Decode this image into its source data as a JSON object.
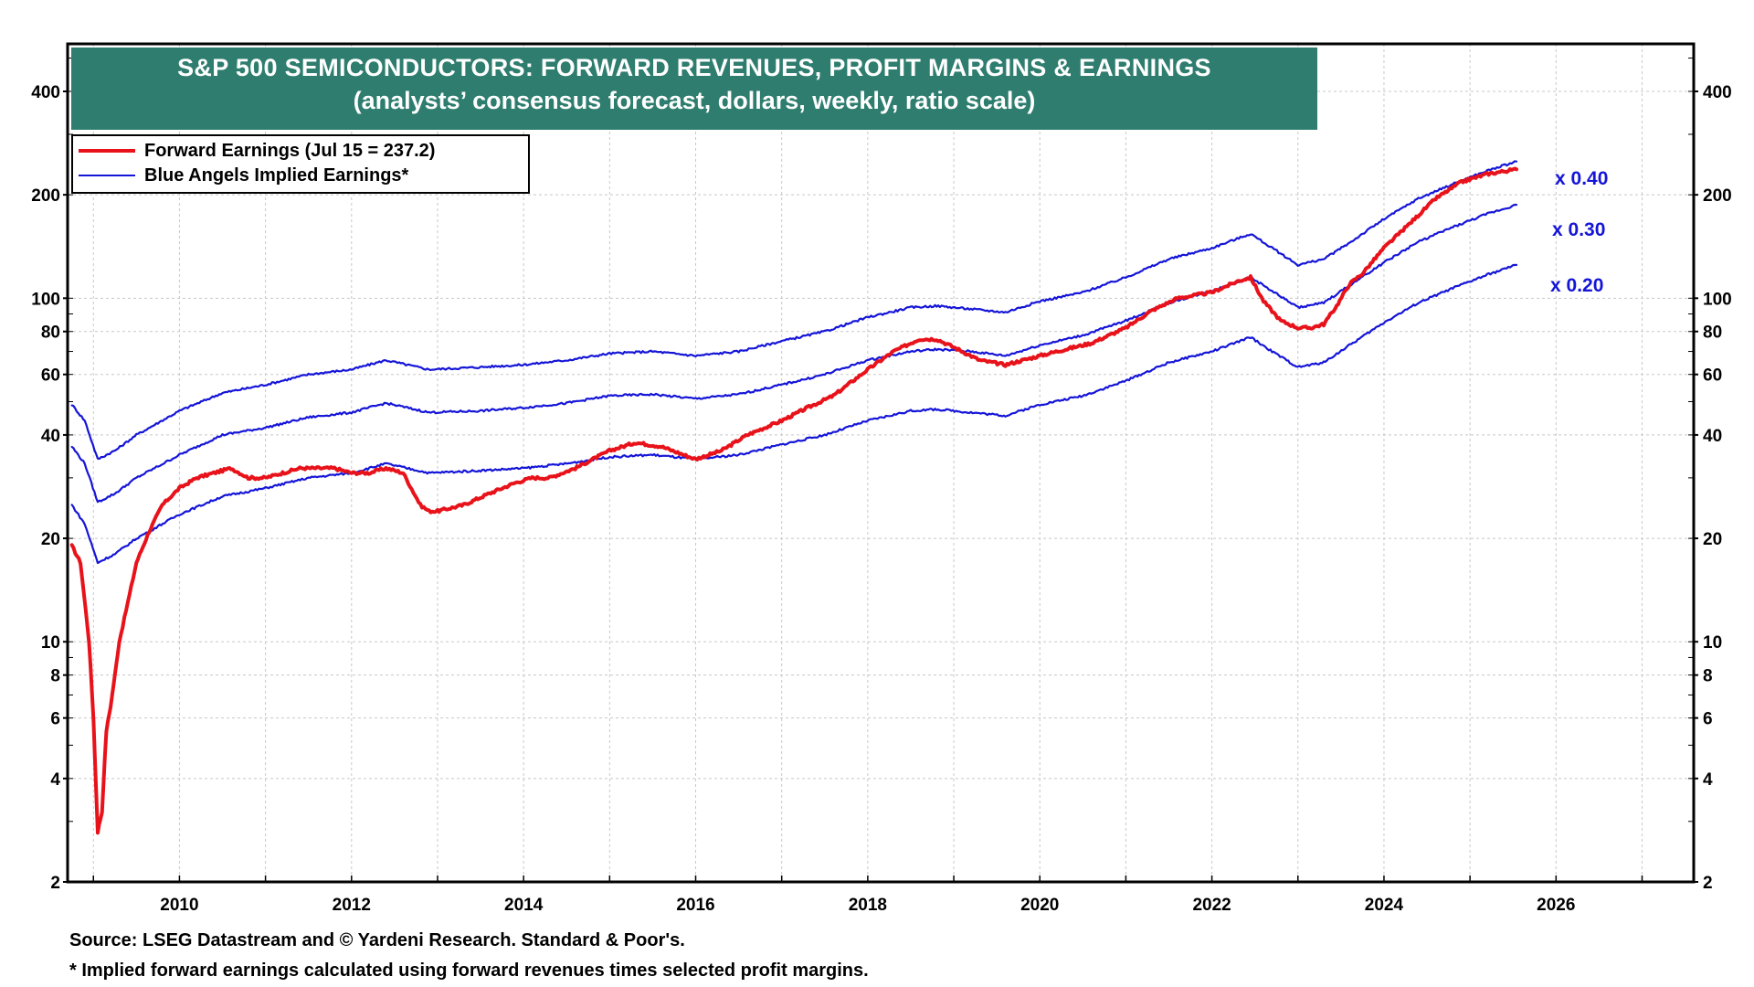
{
  "title": {
    "line1": "S&P 500 SEMICONDUCTORS: FORWARD REVENUES, PROFIT MARGINS & EARNINGS",
    "line2": "(analysts’ consensus forecast, dollars, weekly, ratio scale)"
  },
  "legend": [
    {
      "label": "Forward Earnings (Jul 15 = 237.2)",
      "color": "#e8121a"
    },
    {
      "label": "Blue Angels Implied Earnings*",
      "color": "#1515d8"
    }
  ],
  "footer": {
    "source": "Source: LSEG Datastream and © Yardeni Research. Standard & Poor's.",
    "note": "* Implied forward earnings calculated using forward revenues times selected profit margins."
  },
  "colors": {
    "earnings": "#e8121a",
    "implied": "#1515d8",
    "title_bg": "#2e7d6f",
    "grid": "#c8c8c8"
  },
  "chart_data": {
    "type": "line",
    "scale": "log",
    "xlim": [
      2008.7,
      2027.6
    ],
    "ylim": [
      2,
      550
    ],
    "x_ticks": [
      2010,
      2012,
      2014,
      2016,
      2018,
      2020,
      2022,
      2024,
      2026
    ],
    "y_ticks": [
      2,
      4,
      6,
      8,
      10,
      20,
      40,
      60,
      80,
      100,
      200,
      400
    ],
    "series": [
      {
        "name": "Forward Earnings",
        "label": "Forward Earnings (Jul 15 = 237.2)",
        "color": "#e8121a",
        "x": [
          2008.75,
          2008.85,
          2008.95,
          2009.0,
          2009.05,
          2009.1,
          2009.15,
          2009.2,
          2009.25,
          2009.3,
          2009.4,
          2009.5,
          2009.65,
          2009.8,
          2010.0,
          2010.2,
          2010.4,
          2010.6,
          2010.7,
          2010.8,
          2011.0,
          2011.2,
          2011.4,
          2011.6,
          2011.8,
          2012.0,
          2012.2,
          2012.4,
          2012.6,
          2012.8,
          2012.9,
          2013.0,
          2013.3,
          2013.6,
          2013.9,
          2014.1,
          2014.3,
          2014.6,
          2015.0,
          2015.3,
          2015.6,
          2016.0,
          2016.3,
          2016.6,
          2017.0,
          2017.3,
          2017.6,
          2018.0,
          2018.3,
          2018.6,
          2018.8,
          2019.0,
          2019.3,
          2019.6,
          2020.0,
          2020.3,
          2020.6,
          2021.0,
          2021.3,
          2021.6,
          2022.0,
          2022.3,
          2022.45,
          2022.6,
          2022.8,
          2023.0,
          2023.15,
          2023.3,
          2023.45,
          2023.6,
          2023.75,
          2024.0,
          2024.3,
          2024.6,
          2024.9,
          2025.2,
          2025.54
        ],
        "values": [
          19,
          17,
          10,
          6,
          2.8,
          3.2,
          5.5,
          6.5,
          8,
          10,
          13,
          17,
          21,
          25,
          28,
          30,
          31,
          32,
          31,
          30,
          30,
          31,
          32,
          32,
          32,
          31,
          31,
          32,
          31,
          25,
          24,
          24,
          25,
          27,
          29,
          30,
          30,
          32,
          36,
          38,
          37,
          34,
          36,
          40,
          44,
          48,
          52,
          62,
          70,
          76,
          76,
          72,
          66,
          64,
          68,
          71,
          74,
          82,
          92,
          100,
          104,
          112,
          115,
          98,
          86,
          82,
          82,
          84,
          95,
          110,
          118,
          140,
          165,
          195,
          218,
          230,
          237.2
        ]
      },
      {
        "name": "Blue Angels Implied Earnings x 0.40",
        "color": "#1515d8",
        "x": [
          2008.75,
          2008.9,
          2009.05,
          2009.25,
          2009.5,
          2010.0,
          2010.5,
          2011.0,
          2011.5,
          2012.0,
          2012.4,
          2012.9,
          2013.5,
          2014.0,
          2014.5,
          2015.0,
          2015.5,
          2016.0,
          2016.5,
          2017.0,
          2017.5,
          2018.0,
          2018.5,
          2018.8,
          2019.2,
          2019.6,
          2020.0,
          2020.5,
          2021.0,
          2021.5,
          2022.0,
          2022.45,
          2022.7,
          2023.0,
          2023.3,
          2023.6,
          2024.0,
          2024.4,
          2024.8,
          2025.2,
          2025.54
        ],
        "values": [
          49,
          44,
          34,
          36,
          40,
          47,
          53,
          56,
          60,
          62,
          66,
          62,
          63,
          64,
          66,
          69,
          70,
          68,
          70,
          75,
          80,
          88,
          94,
          95,
          93,
          91,
          98,
          104,
          115,
          130,
          140,
          154,
          140,
          125,
          130,
          145,
          170,
          195,
          215,
          235,
          250
        ]
      },
      {
        "name": "Blue Angels Implied Earnings x 0.30",
        "color": "#1515d8",
        "x": [
          2008.75,
          2008.9,
          2009.05,
          2009.25,
          2009.5,
          2010.0,
          2010.5,
          2011.0,
          2011.5,
          2012.0,
          2012.4,
          2012.9,
          2013.5,
          2014.0,
          2014.5,
          2015.0,
          2015.5,
          2016.0,
          2016.5,
          2017.0,
          2017.5,
          2018.0,
          2018.5,
          2018.8,
          2019.2,
          2019.6,
          2020.0,
          2020.5,
          2021.0,
          2021.5,
          2022.0,
          2022.45,
          2022.7,
          2023.0,
          2023.3,
          2023.6,
          2024.0,
          2024.4,
          2024.8,
          2025.2,
          2025.54
        ],
        "values": [
          37,
          33,
          25.5,
          27,
          30,
          35,
          40,
          42,
          45,
          46.5,
          49.5,
          46.5,
          47,
          48,
          49.5,
          52,
          52.5,
          51,
          52.5,
          56,
          60,
          66,
          70,
          71,
          70,
          68,
          73,
          78,
          86,
          97,
          105,
          115,
          105,
          94,
          97,
          109,
          127,
          146,
          161,
          176,
          187
        ]
      },
      {
        "name": "Blue Angels Implied Earnings x 0.20",
        "color": "#1515d8",
        "x": [
          2008.75,
          2008.9,
          2009.05,
          2009.25,
          2009.5,
          2010.0,
          2010.5,
          2011.0,
          2011.5,
          2012.0,
          2012.4,
          2012.9,
          2013.5,
          2014.0,
          2014.5,
          2015.0,
          2015.5,
          2016.0,
          2016.5,
          2017.0,
          2017.5,
          2018.0,
          2018.5,
          2018.8,
          2019.2,
          2019.6,
          2020.0,
          2020.5,
          2021.0,
          2021.5,
          2022.0,
          2022.45,
          2022.7,
          2023.0,
          2023.3,
          2023.6,
          2024.0,
          2024.4,
          2024.8,
          2025.2,
          2025.54
        ],
        "values": [
          25,
          22,
          17,
          18,
          20,
          23.5,
          26.5,
          28,
          30,
          31,
          33,
          31,
          31.5,
          32,
          33,
          34.5,
          35,
          34,
          35,
          37.5,
          40,
          44,
          47,
          47.5,
          46.5,
          45.5,
          49,
          52,
          57.5,
          65,
          70,
          77,
          70,
          63,
          65,
          73,
          85,
          97,
          107,
          117,
          125
        ]
      }
    ],
    "annotations": [
      "x 0.40",
      "x 0.30",
      "x 0.20"
    ]
  }
}
